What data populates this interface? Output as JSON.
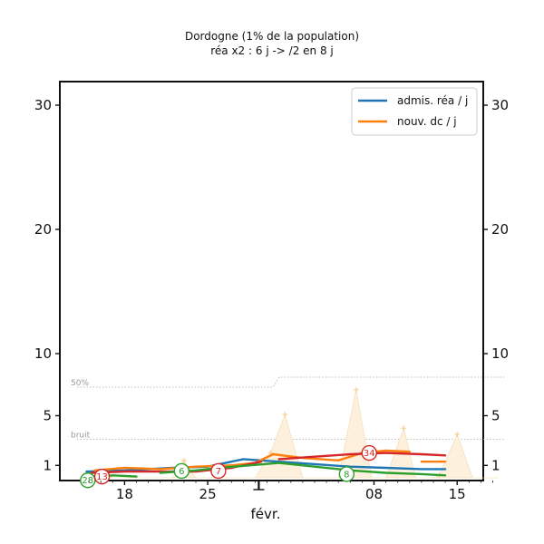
{
  "chart_data": {
    "type": "line",
    "title": "Dordogne (1% de la population)",
    "subtitle": "réa x2 : 6 j -> /2 en 8 j",
    "xlabel": "févr.",
    "x_ticks": [
      {
        "label": "18",
        "day": 18
      },
      {
        "label": "25",
        "day": 25
      },
      {
        "label": "08",
        "day": 39
      },
      {
        "label": "15",
        "day": 46
      }
    ],
    "y_ticks": [
      1,
      5,
      10,
      20,
      30
    ],
    "ylim": [
      0,
      32
    ],
    "xlim": [
      14,
      50
    ],
    "colors": {
      "admis": "#1f77b4",
      "deces": "#ff7f0e",
      "green": "#2ca02c",
      "red": "#d62728",
      "fill": "#fdf0dc",
      "ref": "#aaaaaa"
    },
    "legend": {
      "position": "top-right",
      "entries": [
        {
          "label": "admis. réa / j",
          "color": "#1f77b4"
        },
        {
          "label": "nouv. dc / j",
          "color": "#ff7f0e"
        }
      ]
    },
    "reference_lines": [
      {
        "label": "bruit",
        "points": [
          [
            14,
            3.1
          ],
          [
            50,
            3.1
          ]
        ]
      },
      {
        "label": "50%",
        "points": [
          [
            14,
            7.3
          ],
          [
            30.5,
            7.3
          ],
          [
            31,
            8.1
          ],
          [
            50,
            8.1
          ]
        ]
      }
    ],
    "series": [
      {
        "name": "admis. réa / j",
        "color": "#1f77b4",
        "segments": [
          [
            [
              14.8,
              0.5
            ],
            [
              18,
              0.6
            ],
            [
              22,
              0.8
            ],
            [
              25,
              0.9
            ],
            [
              28,
              1.5
            ],
            [
              31,
              1.3
            ],
            [
              34,
              1.1
            ],
            [
              37,
              0.9
            ],
            [
              40,
              0.8
            ],
            [
              43,
              0.7
            ],
            [
              45,
              0.7
            ]
          ]
        ]
      },
      {
        "name": "nouv. dc / j",
        "color": "#ff7f0e",
        "segments": [
          [
            [
              15.5,
              0.6
            ],
            [
              18,
              0.8
            ],
            [
              21,
              0.7
            ],
            [
              24,
              0.9
            ],
            [
              27,
              1.0
            ],
            [
              29,
              1.2
            ],
            [
              30.5,
              1.9
            ],
            [
              33,
              1.6
            ],
            [
              36,
              1.4
            ],
            [
              38,
              2.0
            ],
            [
              40,
              2.2
            ],
            [
              42,
              2.1
            ]
          ],
          [
            [
              43,
              1.3
            ],
            [
              45,
              1.3
            ]
          ]
        ]
      },
      {
        "name": "",
        "color": "#d62728",
        "segments": [
          [
            [
              15.2,
              0.4
            ],
            [
              18,
              0.5
            ],
            [
              21,
              0.5
            ],
            [
              24,
              0.5
            ],
            [
              27,
              0.8
            ],
            [
              29.5,
              1.3
            ]
          ],
          [
            [
              31,
              1.5
            ],
            [
              34,
              1.7
            ],
            [
              37,
              1.9
            ],
            [
              40,
              2.0
            ],
            [
              43,
              1.9
            ],
            [
              45,
              1.8
            ]
          ]
        ]
      },
      {
        "name": "",
        "color": "#2ca02c",
        "segments": [
          [
            [
              14.7,
              0.05
            ],
            [
              17,
              0.2
            ],
            [
              19,
              0.1
            ]
          ],
          [
            [
              21,
              0.4
            ],
            [
              24,
              0.6
            ],
            [
              26,
              0.8
            ],
            [
              28.5,
              1.0
            ],
            [
              31,
              1.2
            ],
            [
              34,
              0.9
            ],
            [
              37,
              0.6
            ],
            [
              40,
              0.4
            ],
            [
              43,
              0.3
            ],
            [
              45,
              0.2
            ]
          ]
        ]
      }
    ],
    "daily_deaths": [
      [
        14.8,
        0
      ],
      [
        16,
        0.4
      ],
      [
        17,
        0
      ],
      [
        22,
        0
      ],
      [
        23,
        1.4
      ],
      [
        24,
        0
      ],
      [
        29,
        0
      ],
      [
        30.3,
        2.0
      ],
      [
        31.5,
        5.1
      ],
      [
        33,
        0
      ],
      [
        36,
        0
      ],
      [
        37.5,
        7.1
      ],
      [
        38.8,
        0
      ],
      [
        40,
        0
      ],
      [
        41.5,
        4.0
      ],
      [
        42.5,
        0
      ],
      [
        44,
        0
      ],
      [
        44.5,
        0.2
      ],
      [
        46,
        3.5
      ],
      [
        47.3,
        0
      ],
      [
        49.5,
        0
      ]
    ],
    "annotations": [
      {
        "label": "28",
        "x": 14.9,
        "y": -0.2,
        "color": "#2ca02c"
      },
      {
        "label": "13",
        "x": 16.1,
        "y": 0.1,
        "color": "#d62728"
      },
      {
        "label": "6",
        "x": 22.8,
        "y": 0.55,
        "color": "#2ca02c"
      },
      {
        "label": "7",
        "x": 25.9,
        "y": 0.55,
        "color": "#d62728"
      },
      {
        "label": "8",
        "x": 36.7,
        "y": 0.3,
        "color": "#2ca02c"
      },
      {
        "label": "34",
        "x": 38.6,
        "y": 2.0,
        "color": "#d62728"
      }
    ]
  }
}
